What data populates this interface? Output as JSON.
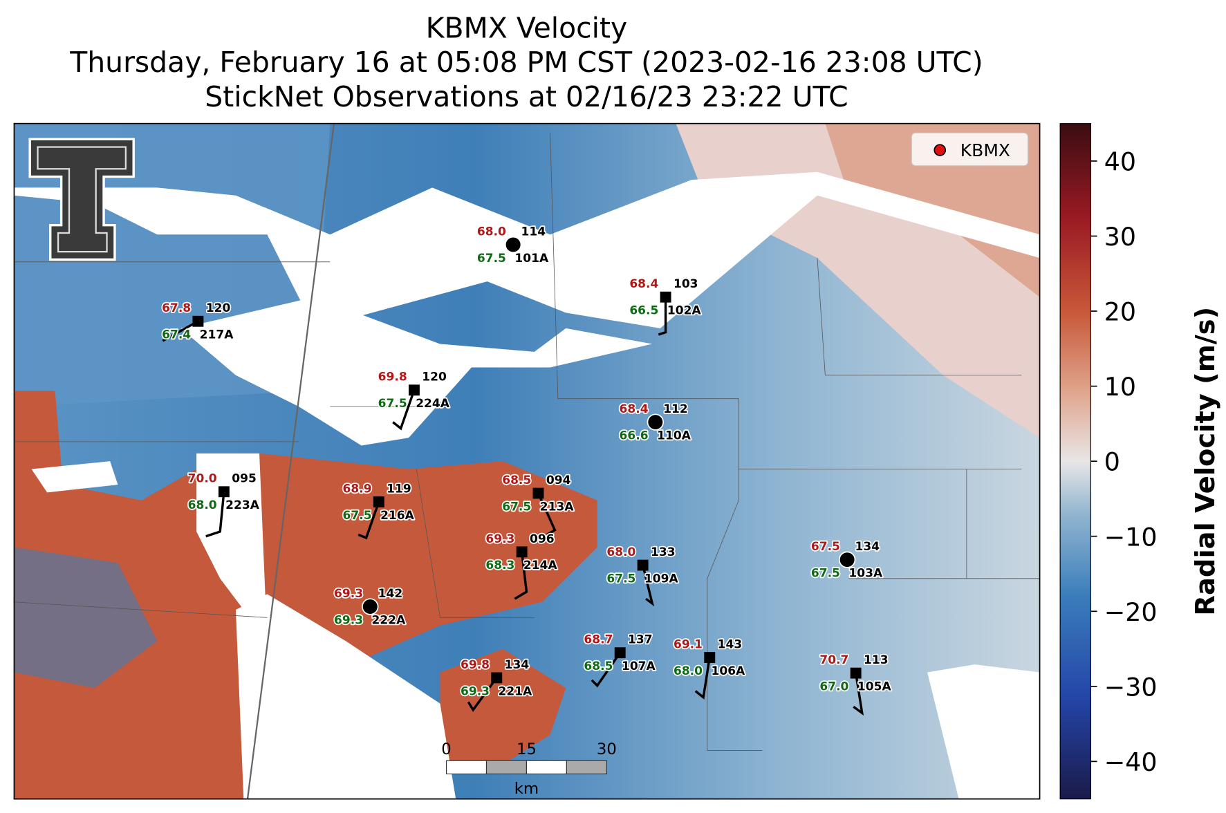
{
  "header": {
    "title": "KBMX Velocity",
    "subtitle": "Thursday, February 16 at 05:08 PM CST (2023-02-16 23:08 UTC)",
    "observations": "StickNet Observations at 02/16/23 23:22 UTC"
  },
  "legend": {
    "label": "KBMX"
  },
  "colorbar": {
    "label": "Radial Velocity (m/s)",
    "lim": [
      -45,
      45
    ],
    "ticks": [
      {
        "value": -40,
        "label": "−40"
      },
      {
        "value": -30,
        "label": "−30"
      },
      {
        "value": -20,
        "label": "−20"
      },
      {
        "value": -10,
        "label": "−10"
      },
      0,
      10,
      20,
      30,
      40
    ]
  },
  "scale_bar": {
    "ticks": [
      "0",
      "15",
      "30"
    ],
    "unit": "km"
  },
  "stations": [
    {
      "id": "101A",
      "temperature": "68.0",
      "dewpoint": "67.5",
      "code": "114"
    },
    {
      "id": "102A",
      "temperature": "68.4",
      "dewpoint": "66.5",
      "code": "103"
    },
    {
      "id": "217A",
      "temperature": "67.8",
      "dewpoint": "67.4",
      "code": "120"
    },
    {
      "id": "224A",
      "temperature": "69.8",
      "dewpoint": "67.5",
      "code": "120"
    },
    {
      "id": "110A",
      "temperature": "68.4",
      "dewpoint": "66.6",
      "code": "112"
    },
    {
      "id": "223A",
      "temperature": "70.0",
      "dewpoint": "68.0",
      "code": "095"
    },
    {
      "id": "216A",
      "temperature": "68.9",
      "dewpoint": "67.5",
      "code": "119"
    },
    {
      "id": "213A",
      "temperature": "68.5",
      "dewpoint": "67.5",
      "code": "094"
    },
    {
      "id": "214A",
      "temperature": "69.3",
      "dewpoint": "68.3",
      "code": "096"
    },
    {
      "id": "109A",
      "temperature": "68.0",
      "dewpoint": "67.5",
      "code": "133"
    },
    {
      "id": "103A",
      "temperature": "67.5",
      "dewpoint": "67.5",
      "code": "134"
    },
    {
      "id": "222A",
      "temperature": "69.3",
      "dewpoint": "69.3",
      "code": "142"
    },
    {
      "id": "107A",
      "temperature": "68.7",
      "dewpoint": "68.5",
      "code": "137"
    },
    {
      "id": "106A",
      "temperature": "69.1",
      "dewpoint": "68.0",
      "code": "143"
    },
    {
      "id": "221A",
      "temperature": "69.8",
      "dewpoint": "69.3",
      "code": "134"
    },
    {
      "id": "105A",
      "temperature": "70.7",
      "dewpoint": "67.0",
      "code": "113"
    }
  ]
}
